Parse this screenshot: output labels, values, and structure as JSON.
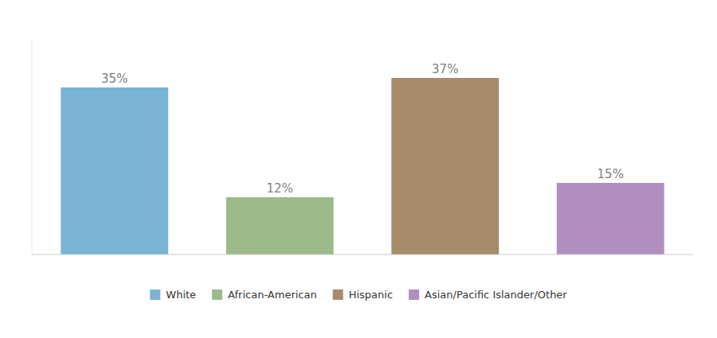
{
  "chart_data": {
    "type": "bar",
    "categories": [
      "White",
      "African-American",
      "Hispanic",
      "Asian/Pacific Islander/Other"
    ],
    "values": [
      35,
      12,
      37,
      15
    ],
    "value_labels": [
      "35%",
      "12%",
      "37%",
      "15%"
    ],
    "colors": [
      "#7ab3d4",
      "#9dba8a",
      "#a68b6b",
      "#b08fc0"
    ],
    "ylim": [
      0,
      45
    ],
    "data_labels": true,
    "tick_labels": false,
    "grid": false,
    "legend": "bottom"
  }
}
